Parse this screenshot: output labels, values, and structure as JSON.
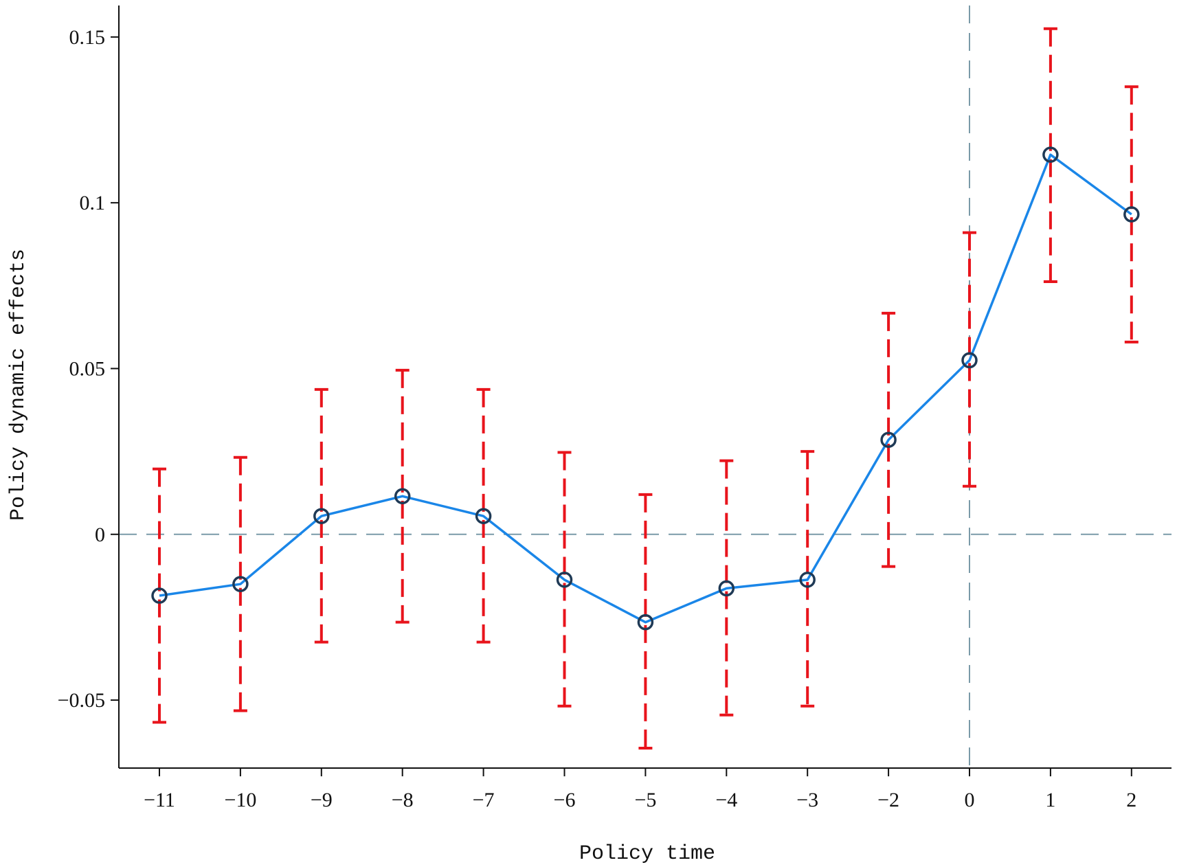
{
  "chart_data": {
    "type": "line",
    "xlabel": "Policy time",
    "ylabel": "Policy dynamic effects",
    "categories": [
      "−11",
      "−10",
      "−9",
      "−8",
      "−7",
      "−6",
      "−5",
      "−4",
      "−3",
      "−2",
      "0",
      "1",
      "2"
    ],
    "y_ticks": [
      {
        "value": 0.15,
        "label": "0.15"
      },
      {
        "value": 0.1,
        "label": "0.1"
      },
      {
        "value": 0.05,
        "label": "0.05"
      },
      {
        "value": 0,
        "label": "0"
      },
      {
        "value": -0.05,
        "label": "−0.05"
      }
    ],
    "ylim": [
      -0.0705,
      0.1595
    ],
    "reference_lines": {
      "y": 0,
      "x_category": "0"
    },
    "series": [
      {
        "values": [
          -0.0185,
          -0.015,
          0.0055,
          0.0115,
          0.0055,
          -0.0137,
          -0.0265,
          -0.0163,
          -0.0137,
          0.0285,
          0.0525,
          0.1145,
          0.0965
        ],
        "upper": [
          0.0197,
          0.0232,
          0.0437,
          0.0495,
          0.0437,
          0.0247,
          0.012,
          0.0222,
          0.025,
          0.0667,
          0.091,
          0.1525,
          0.135
        ],
        "lower": [
          -0.0567,
          -0.0532,
          -0.0325,
          -0.0265,
          -0.0325,
          -0.0518,
          -0.0645,
          -0.0545,
          -0.0518,
          -0.0097,
          0.0145,
          0.0762,
          0.058
        ]
      }
    ],
    "colors": {
      "line": "#1a86e8",
      "marker": "#1f3a56",
      "error_bar": "#e8141c",
      "reference": "#7a9aa8",
      "axis": "#111111"
    },
    "grid": false,
    "legend": "none"
  }
}
